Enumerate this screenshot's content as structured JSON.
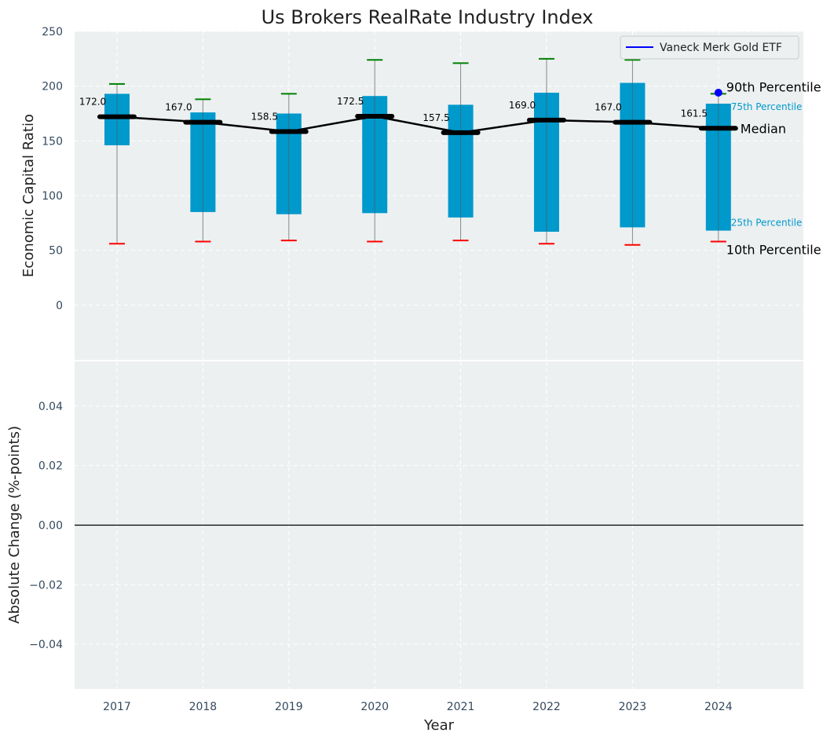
{
  "chart_data": [
    {
      "type": "box",
      "title": "Us Brokers RealRate Industry Index",
      "xlabel": "",
      "ylabel": "Economic Capital Ratio",
      "ylim": [
        -50,
        250
      ],
      "yticks": [
        0,
        50,
        100,
        150,
        200,
        250
      ],
      "categories": [
        "2017",
        "2018",
        "2019",
        "2020",
        "2021",
        "2022",
        "2023",
        "2024"
      ],
      "boxes": [
        {
          "year": "2017",
          "p10": 56,
          "p25": 146,
          "median": 172.0,
          "p75": 193,
          "p90": 202,
          "median_label": "172.0"
        },
        {
          "year": "2018",
          "p10": 58,
          "p25": 85,
          "median": 167.0,
          "p75": 176,
          "p90": 188,
          "median_label": "167.0"
        },
        {
          "year": "2019",
          "p10": 59,
          "p25": 83,
          "median": 158.5,
          "p75": 175,
          "p90": 193,
          "median_label": "158.5"
        },
        {
          "year": "2020",
          "p10": 58,
          "p25": 84,
          "median": 172.5,
          "p75": 191,
          "p90": 224,
          "median_label": "172.5"
        },
        {
          "year": "2021",
          "p10": 59,
          "p25": 80,
          "median": 157.5,
          "p75": 183,
          "p90": 221,
          "median_label": "157.5"
        },
        {
          "year": "2022",
          "p10": 56,
          "p25": 67,
          "median": 169.0,
          "p75": 194,
          "p90": 225,
          "median_label": "169.0"
        },
        {
          "year": "2023",
          "p10": 55,
          "p25": 71,
          "median": 167.0,
          "p75": 203,
          "p90": 224,
          "median_label": "167.0"
        },
        {
          "year": "2024",
          "p10": 58,
          "p25": 68,
          "median": 161.5,
          "p75": 184,
          "p90": 193,
          "median_label": "161.5"
        }
      ],
      "etf_point": {
        "year": "2024",
        "value": 194,
        "color": "#0000ff"
      },
      "legend": {
        "label": "Vaneck Merk Gold ETF",
        "placement": "top-right",
        "color": "#0000ff"
      },
      "annotations": {
        "p90": "90th Percentile",
        "p75": "75th Percentile",
        "median": "Median",
        "p25": "25th Percentile",
        "p10": "10th Percentile"
      },
      "colors": {
        "box": "#0099cc",
        "median": "#000000",
        "p90_cap": "#008000",
        "p10_cap": "#ff0000",
        "whisker": "#888888",
        "background": "#ecf0f1"
      },
      "grid": true
    },
    {
      "type": "line",
      "title": "",
      "xlabel": "Year",
      "ylabel": "Absolute Change (%-points)",
      "ylim": [
        -0.055,
        0.055
      ],
      "yticks": [
        -0.04,
        -0.02,
        0.0,
        0.02,
        0.04
      ],
      "ytick_labels": [
        "−0.04",
        "−0.02",
        "0.00",
        "0.02",
        "0.04"
      ],
      "categories": [
        "2017",
        "2018",
        "2019",
        "2020",
        "2021",
        "2022",
        "2023",
        "2024"
      ],
      "zero_line": true,
      "grid": true
    }
  ]
}
